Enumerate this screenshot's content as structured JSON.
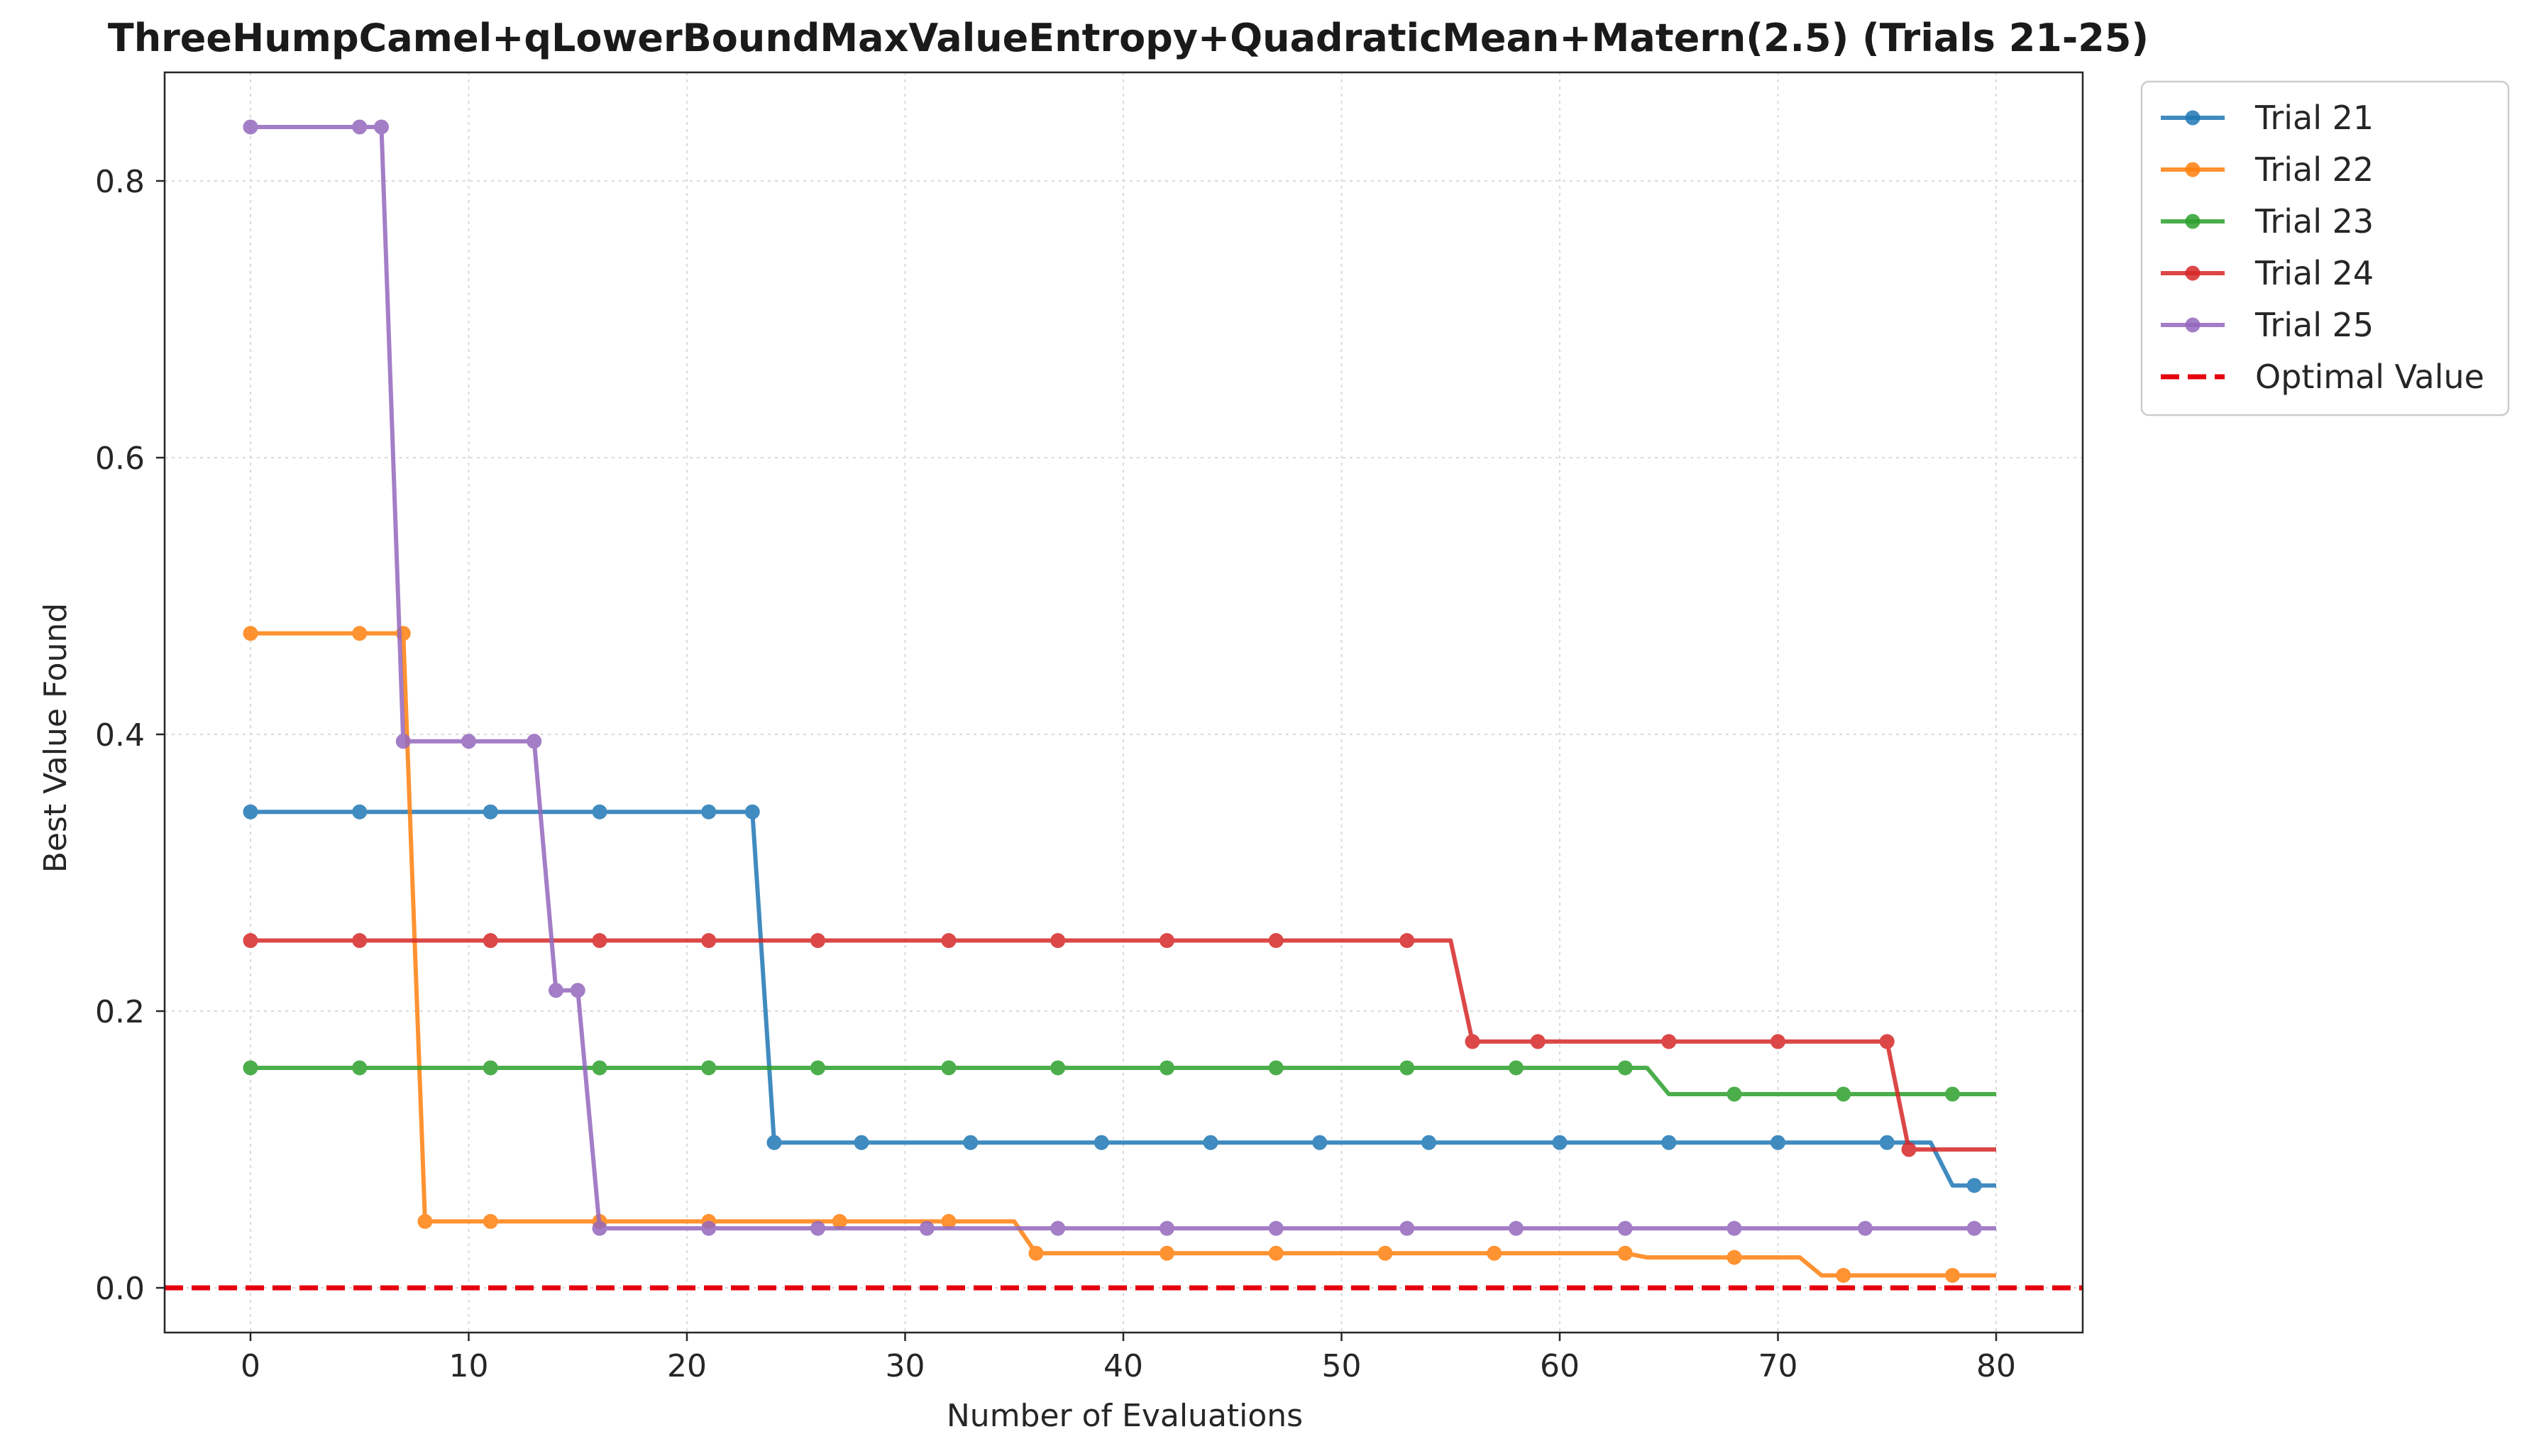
{
  "chart_data": {
    "type": "line",
    "title": "ThreeHumpCamel+qLowerBoundMaxValueEntropy+QuadraticMean+Matern(2.5) (Trials 21-25)",
    "xlabel": "Number of Evaluations",
    "ylabel": "Best Value Found",
    "xlim": [
      -4,
      84
    ],
    "ylim": [
      -0.032,
      0.88
    ],
    "xticks": [
      0,
      10,
      20,
      30,
      40,
      50,
      60,
      70,
      80
    ],
    "yticks": [
      0.0,
      0.2,
      0.4,
      0.6,
      0.8
    ],
    "ytick_labels": [
      "0.0",
      "0.2",
      "0.4",
      "0.6",
      "0.8"
    ],
    "grid": true,
    "legend_position": "outside top-right",
    "step_style": "linear segments between consecutive evaluations",
    "series": [
      {
        "name": "Trial 21",
        "color": "#1f77b4",
        "points": [
          [
            0,
            0.344
          ],
          [
            23,
            0.344
          ],
          [
            24,
            0.105
          ],
          [
            77,
            0.105
          ],
          [
            78,
            0.074
          ],
          [
            80,
            0.074
          ]
        ],
        "markers": [
          [
            0,
            0.344
          ],
          [
            5,
            0.344
          ],
          [
            11,
            0.344
          ],
          [
            16,
            0.344
          ],
          [
            21,
            0.344
          ],
          [
            23,
            0.344
          ],
          [
            24,
            0.105
          ],
          [
            28,
            0.105
          ],
          [
            33,
            0.105
          ],
          [
            39,
            0.105
          ],
          [
            44,
            0.105
          ],
          [
            49,
            0.105
          ],
          [
            54,
            0.105
          ],
          [
            60,
            0.105
          ],
          [
            65,
            0.105
          ],
          [
            70,
            0.105
          ],
          [
            75,
            0.105
          ],
          [
            79,
            0.074
          ]
        ]
      },
      {
        "name": "Trial 22",
        "color": "#ff7f0e",
        "points": [
          [
            0,
            0.473
          ],
          [
            7,
            0.473
          ],
          [
            8,
            0.048
          ],
          [
            35,
            0.048
          ],
          [
            36,
            0.025
          ],
          [
            63,
            0.025
          ],
          [
            64,
            0.022
          ],
          [
            71,
            0.022
          ],
          [
            72,
            0.009
          ],
          [
            80,
            0.009
          ]
        ],
        "markers": [
          [
            0,
            0.473
          ],
          [
            5,
            0.473
          ],
          [
            7,
            0.473
          ],
          [
            8,
            0.048
          ],
          [
            11,
            0.048
          ],
          [
            16,
            0.048
          ],
          [
            21,
            0.048
          ],
          [
            27,
            0.048
          ],
          [
            32,
            0.048
          ],
          [
            36,
            0.025
          ],
          [
            42,
            0.025
          ],
          [
            47,
            0.025
          ],
          [
            52,
            0.025
          ],
          [
            57,
            0.025
          ],
          [
            63,
            0.025
          ],
          [
            68,
            0.022
          ],
          [
            73,
            0.009
          ],
          [
            78,
            0.009
          ]
        ]
      },
      {
        "name": "Trial 23",
        "color": "#2ca02c",
        "points": [
          [
            0,
            0.159
          ],
          [
            64,
            0.159
          ],
          [
            65,
            0.14
          ],
          [
            80,
            0.14
          ]
        ],
        "markers": [
          [
            0,
            0.159
          ],
          [
            5,
            0.159
          ],
          [
            11,
            0.159
          ],
          [
            16,
            0.159
          ],
          [
            21,
            0.159
          ],
          [
            26,
            0.159
          ],
          [
            32,
            0.159
          ],
          [
            37,
            0.159
          ],
          [
            42,
            0.159
          ],
          [
            47,
            0.159
          ],
          [
            53,
            0.159
          ],
          [
            58,
            0.159
          ],
          [
            63,
            0.159
          ],
          [
            68,
            0.14
          ],
          [
            73,
            0.14
          ],
          [
            78,
            0.14
          ]
        ]
      },
      {
        "name": "Trial 24",
        "color": "#d62728",
        "points": [
          [
            0,
            0.251
          ],
          [
            55,
            0.251
          ],
          [
            56,
            0.178
          ],
          [
            75,
            0.178
          ],
          [
            76,
            0.1
          ],
          [
            80,
            0.1
          ]
        ],
        "markers": [
          [
            0,
            0.251
          ],
          [
            5,
            0.251
          ],
          [
            11,
            0.251
          ],
          [
            16,
            0.251
          ],
          [
            21,
            0.251
          ],
          [
            26,
            0.251
          ],
          [
            32,
            0.251
          ],
          [
            37,
            0.251
          ],
          [
            42,
            0.251
          ],
          [
            47,
            0.251
          ],
          [
            53,
            0.251
          ],
          [
            56,
            0.178
          ],
          [
            59,
            0.178
          ],
          [
            65,
            0.178
          ],
          [
            70,
            0.178
          ],
          [
            75,
            0.178
          ],
          [
            76,
            0.1
          ]
        ]
      },
      {
        "name": "Trial 25",
        "color": "#9467bd",
        "points": [
          [
            0,
            0.839
          ],
          [
            6,
            0.839
          ],
          [
            7,
            0.395
          ],
          [
            13,
            0.395
          ],
          [
            14,
            0.215
          ],
          [
            15,
            0.215
          ],
          [
            16,
            0.043
          ],
          [
            80,
            0.043
          ]
        ],
        "markers": [
          [
            0,
            0.839
          ],
          [
            5,
            0.839
          ],
          [
            6,
            0.839
          ],
          [
            7,
            0.395
          ],
          [
            10,
            0.395
          ],
          [
            13,
            0.395
          ],
          [
            14,
            0.215
          ],
          [
            15,
            0.215
          ],
          [
            16,
            0.043
          ],
          [
            21,
            0.043
          ],
          [
            26,
            0.043
          ],
          [
            31,
            0.043
          ],
          [
            37,
            0.043
          ],
          [
            42,
            0.043
          ],
          [
            47,
            0.043
          ],
          [
            53,
            0.043
          ],
          [
            58,
            0.043
          ],
          [
            63,
            0.043
          ],
          [
            68,
            0.043
          ],
          [
            74,
            0.043
          ],
          [
            79,
            0.043
          ]
        ]
      }
    ],
    "reference_line": {
      "name": "Optimal Value",
      "y": 0.0,
      "color": "#e6000d",
      "style": "dashed"
    }
  }
}
